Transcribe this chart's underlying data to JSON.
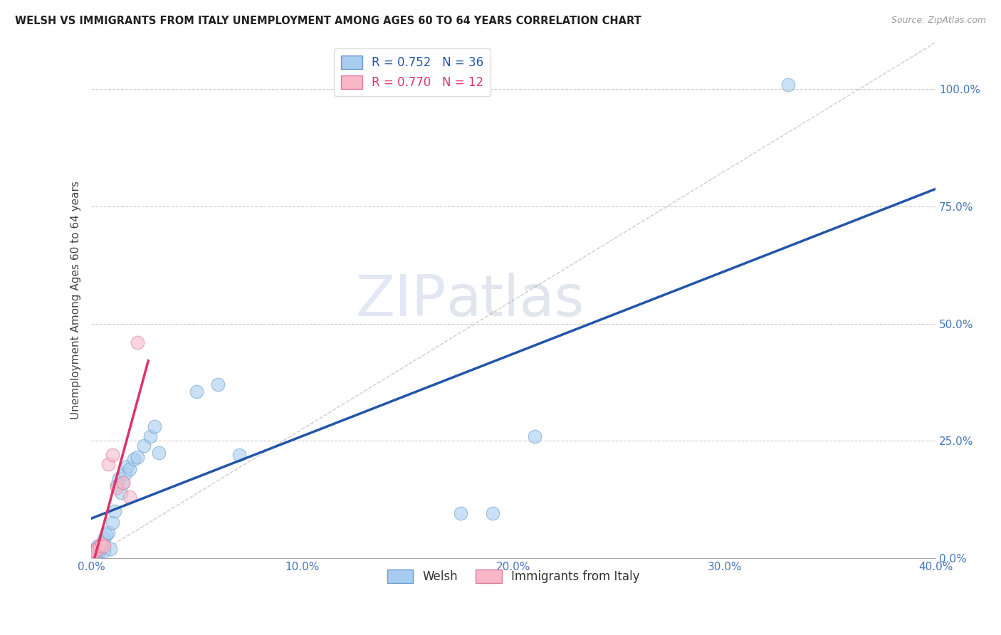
{
  "title": "WELSH VS IMMIGRANTS FROM ITALY UNEMPLOYMENT AMONG AGES 60 TO 64 YEARS CORRELATION CHART",
  "source": "Source: ZipAtlas.com",
  "ylabel": "Unemployment Among Ages 60 to 64 years",
  "watermark_zip": "ZIP",
  "watermark_atlas": "atlas",
  "xlim": [
    0.0,
    0.4
  ],
  "ylim": [
    0.0,
    1.1
  ],
  "xticks": [
    0.0,
    0.1,
    0.2,
    0.3,
    0.4
  ],
  "yticks": [
    0.0,
    0.25,
    0.5,
    0.75,
    1.0
  ],
  "xtick_labels": [
    "0.0%",
    "10.0%",
    "20.0%",
    "30.0%",
    "40.0%"
  ],
  "ytick_labels": [
    "0.0%",
    "25.0%",
    "50.0%",
    "75.0%",
    "100.0%"
  ],
  "welsh_color": "#A8CCF0",
  "italy_color": "#F8B8C8",
  "welsh_edge_color": "#6699CC",
  "italy_edge_color": "#DD7799",
  "trend_welsh_color": "#2255AA",
  "trend_italy_color": "#DD3366",
  "diag_color": "#CCCCCC",
  "R_welsh": "0.752",
  "N_welsh": "36",
  "R_italy": "0.770",
  "N_italy": "12",
  "welsh_x": [
    0.001,
    0.002,
    0.002,
    0.003,
    0.003,
    0.004,
    0.004,
    0.005,
    0.005,
    0.006,
    0.006,
    0.007,
    0.008,
    0.009,
    0.01,
    0.011,
    0.012,
    0.013,
    0.014,
    0.015,
    0.016,
    0.017,
    0.018,
    0.02,
    0.022,
    0.025,
    0.028,
    0.03,
    0.032,
    0.05,
    0.06,
    0.07,
    0.175,
    0.19,
    0.21,
    0.33
  ],
  "welsh_y": [
    0.01,
    0.015,
    0.02,
    0.01,
    0.025,
    0.015,
    0.02,
    0.025,
    0.03,
    0.015,
    0.04,
    0.05,
    0.055,
    0.02,
    0.075,
    0.1,
    0.155,
    0.17,
    0.14,
    0.16,
    0.18,
    0.195,
    0.19,
    0.21,
    0.215,
    0.24,
    0.26,
    0.28,
    0.225,
    0.355,
    0.37,
    0.22,
    0.095,
    0.095,
    0.26,
    1.01
  ],
  "italy_x": [
    0.001,
    0.002,
    0.003,
    0.004,
    0.005,
    0.006,
    0.008,
    0.01,
    0.012,
    0.015,
    0.018,
    0.022
  ],
  "italy_y": [
    0.01,
    0.015,
    0.02,
    0.025,
    0.03,
    0.025,
    0.2,
    0.22,
    0.15,
    0.16,
    0.13,
    0.46
  ],
  "trend_welsh_x0": 0.0,
  "trend_welsh_x1": 0.4,
  "trend_italy_x0": 0.0,
  "trend_italy_x1": 0.027,
  "marker_size": 180,
  "marker_alpha": 0.6,
  "legend_label_welsh": "Welsh",
  "legend_label_italy": "Immigrants from Italy"
}
